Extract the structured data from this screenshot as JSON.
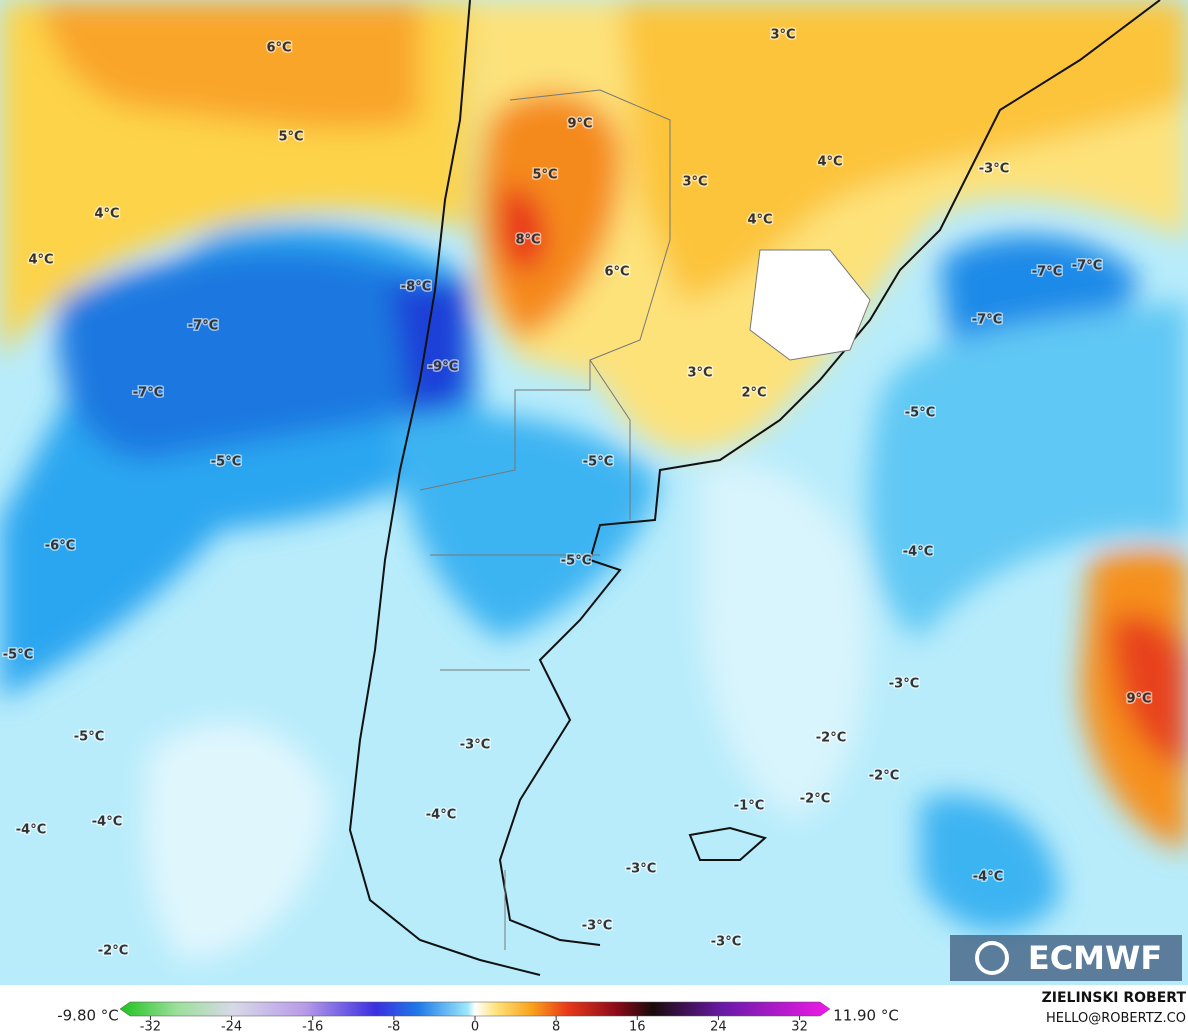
{
  "map": {
    "labels": [
      "6°C",
      "5°C",
      "4°C",
      "4°C",
      "-8°C",
      "-7°C",
      "-9°C",
      "-7°C",
      "-5°C",
      "-6°C",
      "-5°C",
      "-5°C",
      "-4°C",
      "-4°C",
      "-2°C",
      "9°C",
      "5°C",
      "8°C",
      "6°C",
      "3°C",
      "4°C",
      "3°C",
      "4°C",
      "-3°C",
      "-7°C",
      "-7°C",
      "-7°C",
      "3°C",
      "2°C",
      "-5°C",
      "-5°C",
      "-5°C",
      "-4°C",
      "-3°C",
      "9°C",
      "-2°C",
      "-2°C",
      "-3°C",
      "-1°C",
      "-2°C",
      "-4°C",
      "-4°C",
      "-3°C",
      "-3°C",
      "-3°C"
    ]
  },
  "colorbar": {
    "min": "-9.80 °C",
    "max": "11.90 °C",
    "lim": [
      -35,
      35
    ],
    "ticks": [
      -32,
      -24,
      -16,
      -8,
      0,
      8,
      16,
      24,
      32
    ]
  },
  "logo": "ECMWF",
  "credit": {
    "name": "ZIELINSKI ROBERT",
    "contact": "HELLO@ROBERTZ.CO"
  }
}
